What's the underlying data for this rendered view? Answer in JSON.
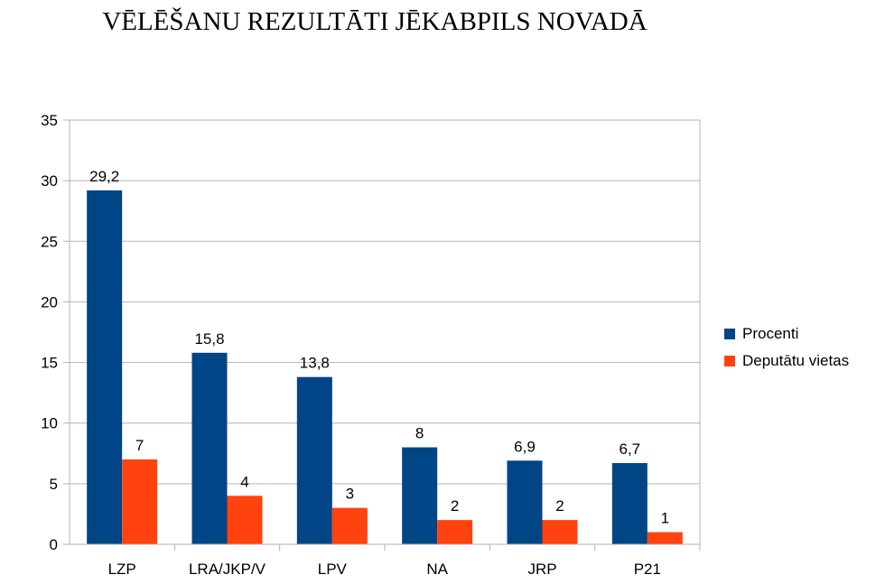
{
  "chart_data": {
    "type": "bar",
    "title": "VĒLĒŠANU REZULTĀTI JĒKABPILS NOVADĀ",
    "categories": [
      "LZP",
      "LRA/JKP/V",
      "LPV",
      "NA",
      "JRP",
      "P21"
    ],
    "series": [
      {
        "name": "Procenti",
        "color": "#004586",
        "values": [
          29.2,
          15.8,
          13.8,
          8,
          6.9,
          6.7
        ],
        "labels": [
          "29,2",
          "15,8",
          "13,8",
          "8",
          "6,9",
          "6,7"
        ]
      },
      {
        "name": "Deputātu vietas",
        "color": "#ff420e",
        "values": [
          7,
          4,
          3,
          2,
          2,
          1
        ],
        "labels": [
          "7",
          "4",
          "3",
          "2",
          "2",
          "1"
        ]
      }
    ],
    "ylim": [
      0,
      35
    ],
    "yticks": [
      "0",
      "5",
      "10",
      "15",
      "20",
      "25",
      "30",
      "35"
    ],
    "grid": true,
    "legend": "right",
    "xlabel": "",
    "ylabel": ""
  }
}
